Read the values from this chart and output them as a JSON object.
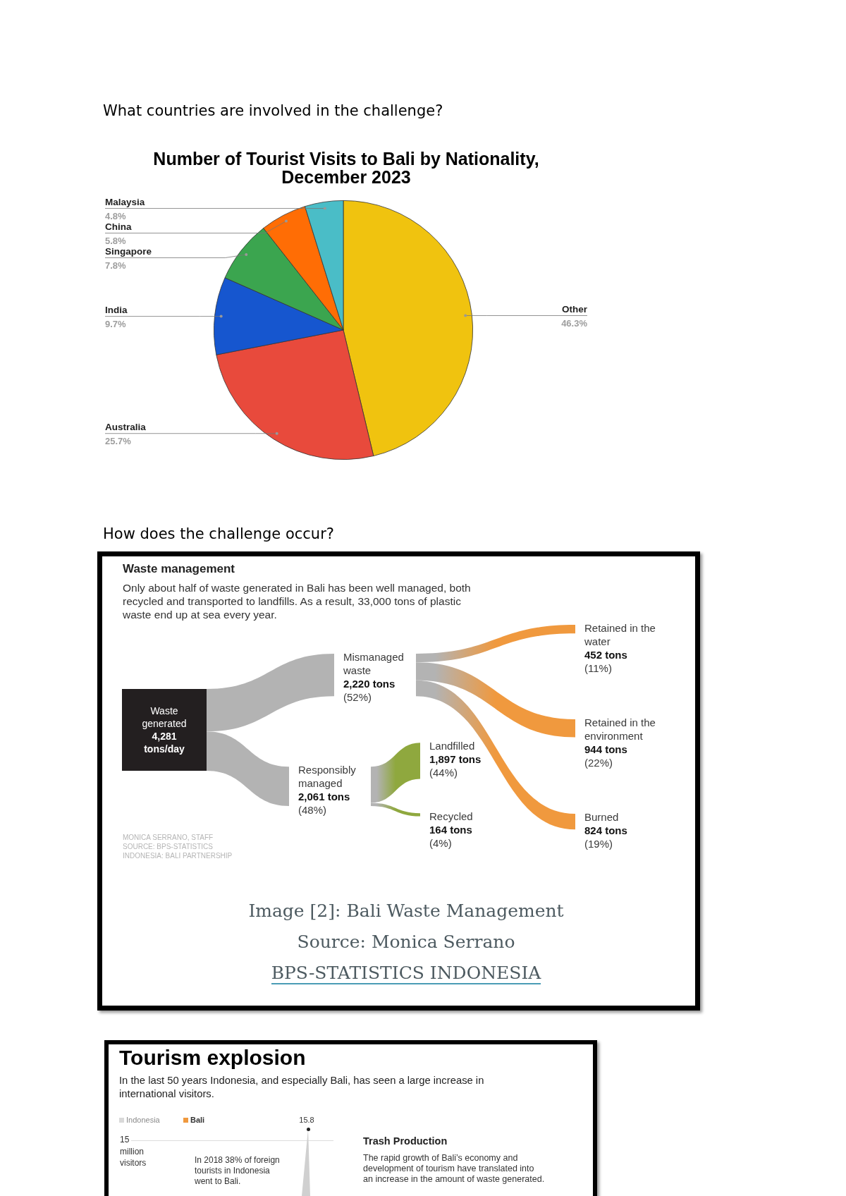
{
  "chart_data": [
    {
      "type": "pie",
      "title": "Number of Tourist Visits to Bali by Nationality, December 2023",
      "annotations": [
        "What countries are involved in the challenge?"
      ],
      "categories": [
        "Other",
        "Australia",
        "India",
        "Singapore",
        "China",
        "Malaysia"
      ],
      "values": [
        46.3,
        25.7,
        9.7,
        7.8,
        5.8,
        4.8
      ],
      "value_labels": [
        "46.3%",
        "25.7%",
        "9.7%",
        "7.8%",
        "5.8%",
        "4.8%"
      ],
      "colors": [
        "#f0c30f",
        "#e84a3c",
        "#1656cf",
        "#3ba54f",
        "#ff6d05",
        "#4abdc7"
      ],
      "legend": false
    },
    {
      "type": "other",
      "title": "Waste management",
      "subtitle": "Only about half of waste generated in Bali has been well managed, both recycled and transported to landfills. As a result, 33,000 tons of plastic waste end up at sea every year.",
      "categories": [
        "Waste generated",
        "Mismanaged waste",
        "Retained in the water",
        "Retained in the environment",
        "Burned",
        "Responsibly managed",
        "Landfilled",
        "Recycled"
      ],
      "values": [
        4281,
        2220,
        452,
        944,
        824,
        2061,
        1897,
        164
      ],
      "value_labels": [
        "4,281 tons/day",
        "2,220 tons\n(52%)",
        "452 tons\n(11%)",
        "944 tons\n(22%)",
        "824 tons\n(19%)",
        "2,061 tons\n(48%)",
        "1,897 tons\n(44%)",
        "164 tons\n(4%)"
      ],
      "colors": [
        "#231f20",
        "#b3b3b3",
        "#f0993e",
        "#f0993e",
        "#f0993e",
        "#b3b3b3",
        "#8fa83e",
        "#8fa83e"
      ],
      "annotations": [
        "How does the challenge occur?",
        "MONICA SERRANO, STAFF",
        "SOURCE: BPS-STATISTICS INDONESIA: BALI PARTNERSHIP",
        "Image [2]: Bali Waste Management",
        "Source: Monica Serrano",
        "BPS-STATISTICS INDONESIA"
      ]
    },
    {
      "type": "other",
      "title": "Tourism explosion",
      "subtitle": "In the last 50 years Indonesia, and especially Bali, has seen a large increase in international visitors.",
      "annotations": [
        "Indonesia",
        "Bali",
        "15.8",
        "15",
        "million visitors",
        "In 2018 38% of foreign tourists in Indonesia went to Bali.",
        "Trash Production",
        "The rapid growth of Bali’s economy and development of tourism have translated into an increase in the amount of waste generated."
      ]
    }
  ]
}
